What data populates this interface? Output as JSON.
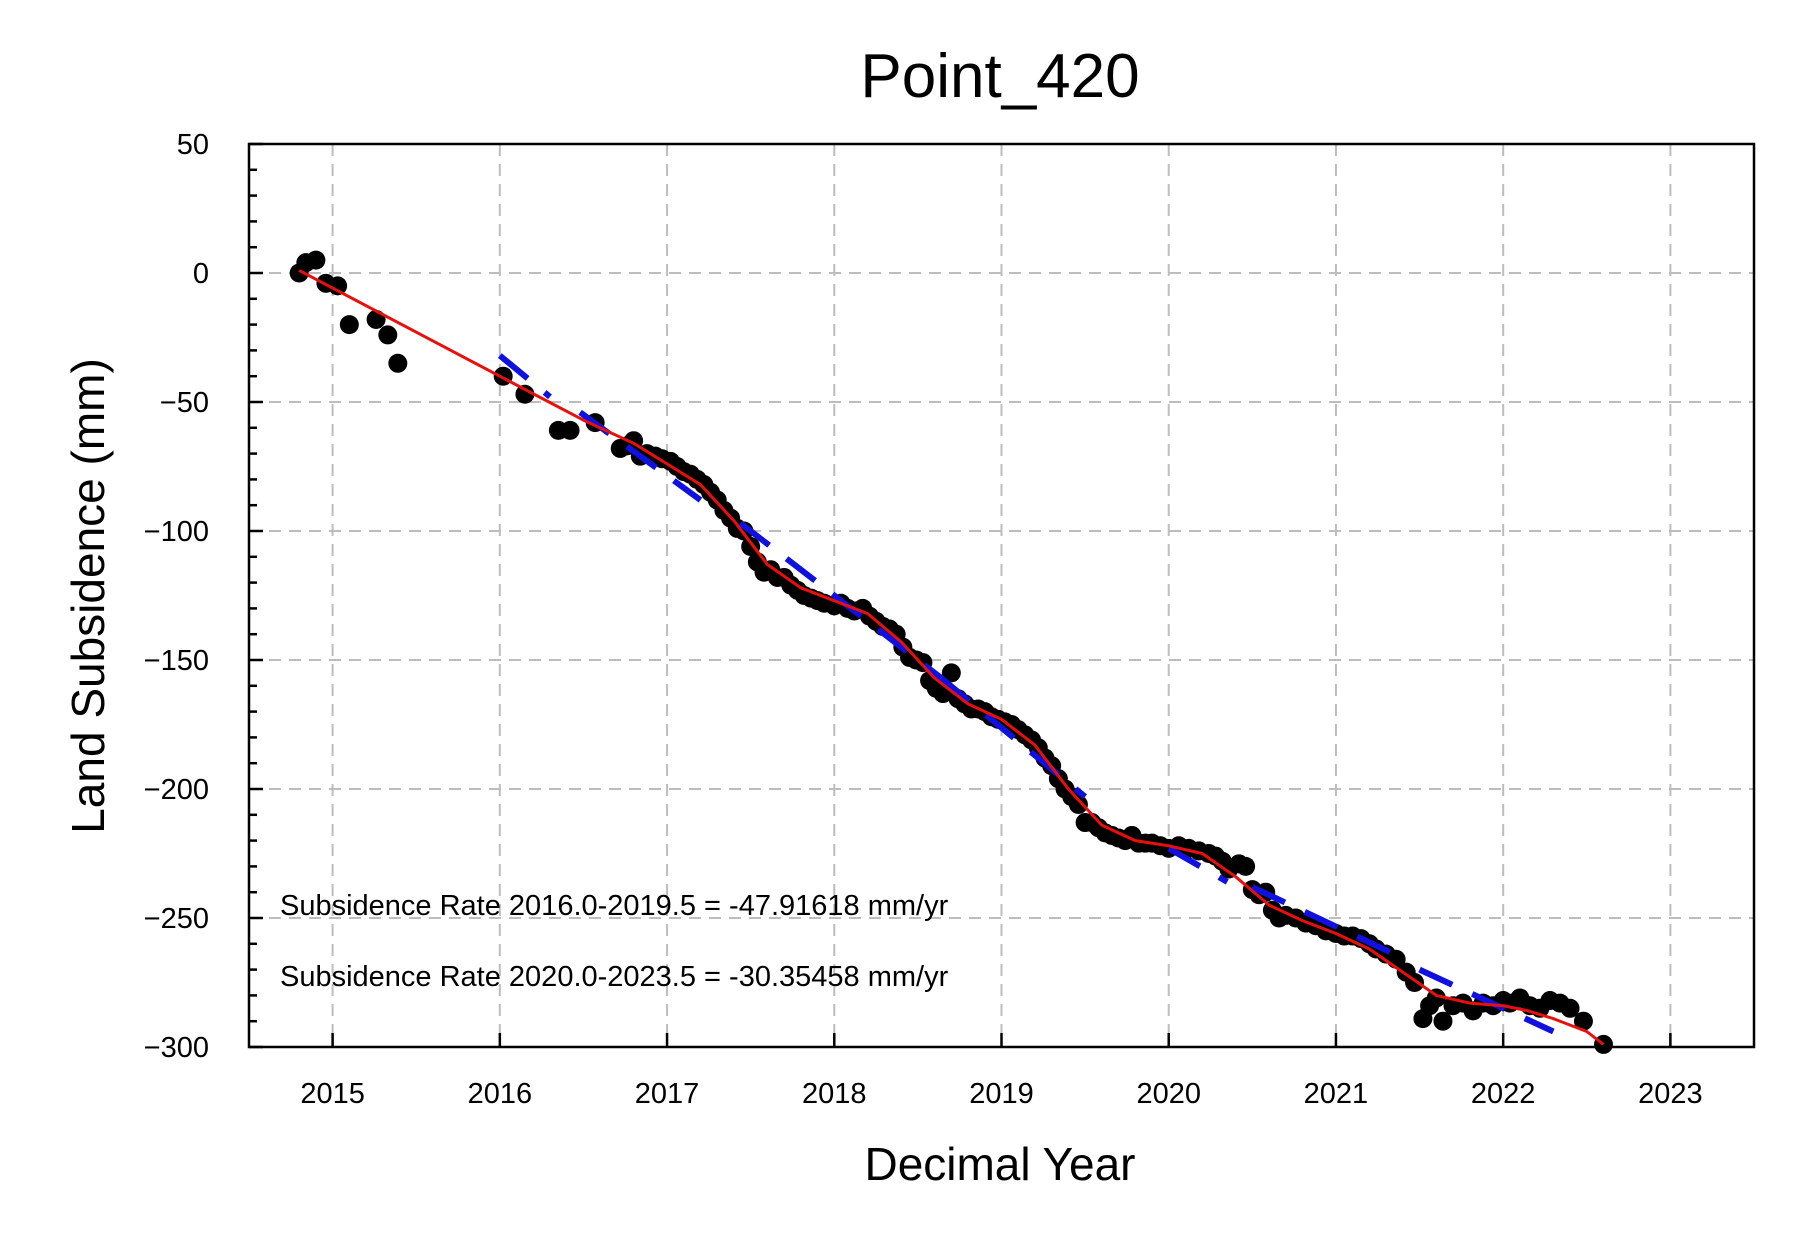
{
  "chart_data": {
    "type": "scatter",
    "title": "Point_420",
    "xlabel": "Decimal Year",
    "ylabel": "Land Subsidence (mm)",
    "xlim": [
      2014.5,
      2023.5
    ],
    "ylim": [
      -300,
      50
    ],
    "xticks": [
      2015,
      2016,
      2017,
      2018,
      2019,
      2020,
      2021,
      2022,
      2023
    ],
    "yticks": [
      50,
      0,
      -50,
      -100,
      -150,
      -200,
      -250,
      -300
    ],
    "ytick_labels": [
      "50",
      "0",
      "−50",
      "−100",
      "−150",
      "−200",
      "−250",
      "−300"
    ],
    "grid": true,
    "colors": {
      "points": "#000000",
      "smooth_fit": "#e8100c",
      "rate_fit": "#1010e0"
    },
    "annotations": [
      "Subsidence Rate 2016.0-2019.5 = -47.91618 mm/yr",
      "Subsidence Rate 2020.0-2023.5 = -30.35458 mm/yr"
    ],
    "points": [
      [
        2014.8,
        0
      ],
      [
        2014.84,
        4
      ],
      [
        2014.9,
        5
      ],
      [
        2014.96,
        -4
      ],
      [
        2015.03,
        -5
      ],
      [
        2015.1,
        -20
      ],
      [
        2015.26,
        -18
      ],
      [
        2015.33,
        -24
      ],
      [
        2015.39,
        -35
      ],
      [
        2016.02,
        -40
      ],
      [
        2016.15,
        -47
      ],
      [
        2016.35,
        -61
      ],
      [
        2016.42,
        -61
      ],
      [
        2016.57,
        -58
      ],
      [
        2016.72,
        -68
      ],
      [
        2016.76,
        -67
      ],
      [
        2016.8,
        -65
      ],
      [
        2016.84,
        -71
      ],
      [
        2016.88,
        -70
      ],
      [
        2016.93,
        -71
      ],
      [
        2016.97,
        -72
      ],
      [
        2017.02,
        -73
      ],
      [
        2017.06,
        -75
      ],
      [
        2017.1,
        -77
      ],
      [
        2017.14,
        -78
      ],
      [
        2017.18,
        -80
      ],
      [
        2017.22,
        -82
      ],
      [
        2017.26,
        -85
      ],
      [
        2017.3,
        -88
      ],
      [
        2017.34,
        -92
      ],
      [
        2017.38,
        -95
      ],
      [
        2017.42,
        -99
      ],
      [
        2017.46,
        -100
      ],
      [
        2017.5,
        -106
      ],
      [
        2017.54,
        -112
      ],
      [
        2017.58,
        -116
      ],
      [
        2017.62,
        -115
      ],
      [
        2017.66,
        -118
      ],
      [
        2017.7,
        -118
      ],
      [
        2017.74,
        -121
      ],
      [
        2017.78,
        -123
      ],
      [
        2017.82,
        -125
      ],
      [
        2017.86,
        -126
      ],
      [
        2017.9,
        -127
      ],
      [
        2017.94,
        -128
      ],
      [
        2018.0,
        -129
      ],
      [
        2018.04,
        -128
      ],
      [
        2018.08,
        -130
      ],
      [
        2018.12,
        -131
      ],
      [
        2018.17,
        -130
      ],
      [
        2018.21,
        -133
      ],
      [
        2018.25,
        -135
      ],
      [
        2018.29,
        -137
      ],
      [
        2018.33,
        -138
      ],
      [
        2018.37,
        -140
      ],
      [
        2018.41,
        -145
      ],
      [
        2018.45,
        -149
      ],
      [
        2018.49,
        -150
      ],
      [
        2018.53,
        -151
      ],
      [
        2018.57,
        -158
      ],
      [
        2018.61,
        -161
      ],
      [
        2018.65,
        -163
      ],
      [
        2018.7,
        -155
      ],
      [
        2018.74,
        -165
      ],
      [
        2018.78,
        -167
      ],
      [
        2018.82,
        -169
      ],
      [
        2018.86,
        -169
      ],
      [
        2018.9,
        -170
      ],
      [
        2018.94,
        -172
      ],
      [
        2018.98,
        -173
      ],
      [
        2019.02,
        -174
      ],
      [
        2019.06,
        -175
      ],
      [
        2019.1,
        -177
      ],
      [
        2019.14,
        -179
      ],
      [
        2019.18,
        -181
      ],
      [
        2019.22,
        -184
      ],
      [
        2019.26,
        -188
      ],
      [
        2019.3,
        -191
      ],
      [
        2019.34,
        -196
      ],
      [
        2019.38,
        -200
      ],
      [
        2019.42,
        -203
      ],
      [
        2019.46,
        -206
      ],
      [
        2019.5,
        -213
      ],
      [
        2019.54,
        -213
      ],
      [
        2019.58,
        -215
      ],
      [
        2019.62,
        -217
      ],
      [
        2019.66,
        -218
      ],
      [
        2019.7,
        -219
      ],
      [
        2019.74,
        -220
      ],
      [
        2019.78,
        -218
      ],
      [
        2019.82,
        -221
      ],
      [
        2019.86,
        -221
      ],
      [
        2019.9,
        -221
      ],
      [
        2019.95,
        -222
      ],
      [
        2020.0,
        -223
      ],
      [
        2020.06,
        -222
      ],
      [
        2020.12,
        -223
      ],
      [
        2020.18,
        -224
      ],
      [
        2020.24,
        -225
      ],
      [
        2020.28,
        -226
      ],
      [
        2020.32,
        -228
      ],
      [
        2020.36,
        -231
      ],
      [
        2020.42,
        -229
      ],
      [
        2020.46,
        -230
      ],
      [
        2020.5,
        -239
      ],
      [
        2020.54,
        -241
      ],
      [
        2020.58,
        -240
      ],
      [
        2020.62,
        -247
      ],
      [
        2020.66,
        -250
      ],
      [
        2020.7,
        -249
      ],
      [
        2020.76,
        -250
      ],
      [
        2020.82,
        -252
      ],
      [
        2020.88,
        -253
      ],
      [
        2020.94,
        -255
      ],
      [
        2021.0,
        -256
      ],
      [
        2021.05,
        -257
      ],
      [
        2021.1,
        -257
      ],
      [
        2021.15,
        -258
      ],
      [
        2021.2,
        -260
      ],
      [
        2021.24,
        -262
      ],
      [
        2021.3,
        -264
      ],
      [
        2021.36,
        -266
      ],
      [
        2021.42,
        -271
      ],
      [
        2021.47,
        -275
      ],
      [
        2021.52,
        -289
      ],
      [
        2021.56,
        -284
      ],
      [
        2021.6,
        -281
      ],
      [
        2021.64,
        -290
      ],
      [
        2021.7,
        -284
      ],
      [
        2021.76,
        -283
      ],
      [
        2021.82,
        -286
      ],
      [
        2021.88,
        -283
      ],
      [
        2021.94,
        -284
      ],
      [
        2022.0,
        -282
      ],
      [
        2022.04,
        -283
      ],
      [
        2022.1,
        -281
      ],
      [
        2022.16,
        -284
      ],
      [
        2022.22,
        -285
      ],
      [
        2022.28,
        -282
      ],
      [
        2022.34,
        -283
      ],
      [
        2022.4,
        -285
      ],
      [
        2022.48,
        -290
      ],
      [
        2022.6,
        -299
      ]
    ],
    "smooth_fit": [
      [
        2014.8,
        1
      ],
      [
        2016.0,
        -40
      ],
      [
        2016.5,
        -57
      ],
      [
        2016.8,
        -66
      ],
      [
        2017.0,
        -74
      ],
      [
        2017.2,
        -82
      ],
      [
        2017.4,
        -96
      ],
      [
        2017.6,
        -113
      ],
      [
        2017.8,
        -122
      ],
      [
        2018.0,
        -127
      ],
      [
        2018.2,
        -132
      ],
      [
        2018.4,
        -143
      ],
      [
        2018.6,
        -157
      ],
      [
        2018.8,
        -167
      ],
      [
        2019.0,
        -173
      ],
      [
        2019.2,
        -183
      ],
      [
        2019.4,
        -200
      ],
      [
        2019.6,
        -214
      ],
      [
        2019.8,
        -220
      ],
      [
        2020.0,
        -222
      ],
      [
        2020.2,
        -225
      ],
      [
        2020.4,
        -234
      ],
      [
        2020.6,
        -245
      ],
      [
        2020.8,
        -251
      ],
      [
        2021.0,
        -256
      ],
      [
        2021.2,
        -262
      ],
      [
        2021.4,
        -271
      ],
      [
        2021.6,
        -280
      ],
      [
        2021.8,
        -283
      ],
      [
        2022.0,
        -284
      ],
      [
        2022.15,
        -286
      ],
      [
        2022.3,
        -289
      ],
      [
        2022.5,
        -294
      ],
      [
        2022.6,
        -299
      ]
    ],
    "rate_fit_segments": [
      [
        [
          2016.0,
          -32
        ],
        [
          2016.3,
          -48
        ]
      ],
      [
        [
          2016.48,
          -54
        ],
        [
          2017.2,
          -88
        ]
      ],
      [
        [
          2017.44,
          -97
        ],
        [
          2018.64,
          -157
        ]
      ],
      [
        [
          2018.64,
          -157
        ],
        [
          2019.5,
          -203
        ]
      ],
      [
        [
          2020.0,
          -223
        ],
        [
          2020.35,
          -236
        ]
      ],
      [
        [
          2020.5,
          -238
        ],
        [
          2021.35,
          -264
        ]
      ],
      [
        [
          2021.5,
          -270
        ],
        [
          2022.3,
          -294
        ]
      ]
    ]
  }
}
